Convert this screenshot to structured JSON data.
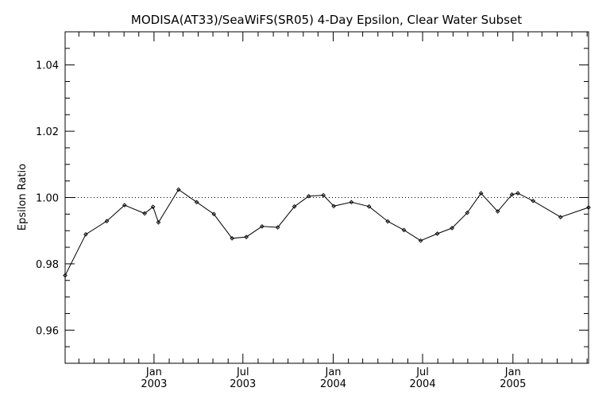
{
  "chart_data": {
    "type": "line",
    "title": "MODISA(AT33)/SeaWiFS(SR05) 4-Day Epsilon, Clear Water Subset",
    "xlabel": "",
    "ylabel": "Epsilon Ratio",
    "ylim": [
      0.95,
      1.05
    ],
    "xlim": [
      "2002-07-04",
      "2005-06-04"
    ],
    "y_ticks": [
      {
        "value": 0.96,
        "label": "0.96"
      },
      {
        "value": 0.98,
        "label": "0.98"
      },
      {
        "value": 1.0,
        "label": "1.00"
      },
      {
        "value": 1.02,
        "label": "1.02"
      },
      {
        "value": 1.04,
        "label": "1.04"
      }
    ],
    "x_ticks": [
      {
        "date": "2003-01-01",
        "month": "Jan",
        "year": "2003"
      },
      {
        "date": "2003-07-01",
        "month": "Jul",
        "year": "2003"
      },
      {
        "date": "2004-01-01",
        "month": "Jan",
        "year": "2004"
      },
      {
        "date": "2004-07-01",
        "month": "Jul",
        "year": "2004"
      },
      {
        "date": "2005-01-01",
        "month": "Jan",
        "year": "2005"
      }
    ],
    "reference_line": {
      "y": 1.0,
      "style": "dotted"
    },
    "series": [
      {
        "points": [
          {
            "x": "2002-07-04",
            "y": 0.9765
          },
          {
            "x": "2002-08-15",
            "y": 0.9889
          },
          {
            "x": "2002-09-27",
            "y": 0.9929
          },
          {
            "x": "2002-11-02",
            "y": 0.9977
          },
          {
            "x": "2002-12-13",
            "y": 0.9952
          },
          {
            "x": "2002-12-30",
            "y": 0.9972
          },
          {
            "x": "2003-01-10",
            "y": 0.9925
          },
          {
            "x": "2003-02-20",
            "y": 1.0024
          },
          {
            "x": "2003-03-29",
            "y": 0.9986
          },
          {
            "x": "2003-05-03",
            "y": 0.995
          },
          {
            "x": "2003-06-09",
            "y": 0.9877
          },
          {
            "x": "2003-07-08",
            "y": 0.9881
          },
          {
            "x": "2003-08-09",
            "y": 0.9913
          },
          {
            "x": "2003-09-10",
            "y": 0.991
          },
          {
            "x": "2003-10-14",
            "y": 0.9973
          },
          {
            "x": "2003-11-12",
            "y": 1.0004
          },
          {
            "x": "2003-12-12",
            "y": 1.0007
          },
          {
            "x": "2004-01-02",
            "y": 0.9974
          },
          {
            "x": "2004-02-07",
            "y": 0.9986
          },
          {
            "x": "2004-03-14",
            "y": 0.9973
          },
          {
            "x": "2004-04-21",
            "y": 0.9928
          },
          {
            "x": "2004-05-24",
            "y": 0.9902
          },
          {
            "x": "2004-06-27",
            "y": 0.987
          },
          {
            "x": "2004-07-31",
            "y": 0.9891
          },
          {
            "x": "2004-08-30",
            "y": 0.9908
          },
          {
            "x": "2004-09-30",
            "y": 0.9954
          },
          {
            "x": "2004-10-28",
            "y": 1.0013
          },
          {
            "x": "2004-12-01",
            "y": 0.9958
          },
          {
            "x": "2004-12-30",
            "y": 1.0009
          },
          {
            "x": "2005-01-11",
            "y": 1.0013
          },
          {
            "x": "2005-02-11",
            "y": 0.999
          },
          {
            "x": "2005-04-08",
            "y": 0.9941
          },
          {
            "x": "2005-06-04",
            "y": 0.997
          }
        ]
      }
    ],
    "grid": false,
    "legend": "none"
  }
}
